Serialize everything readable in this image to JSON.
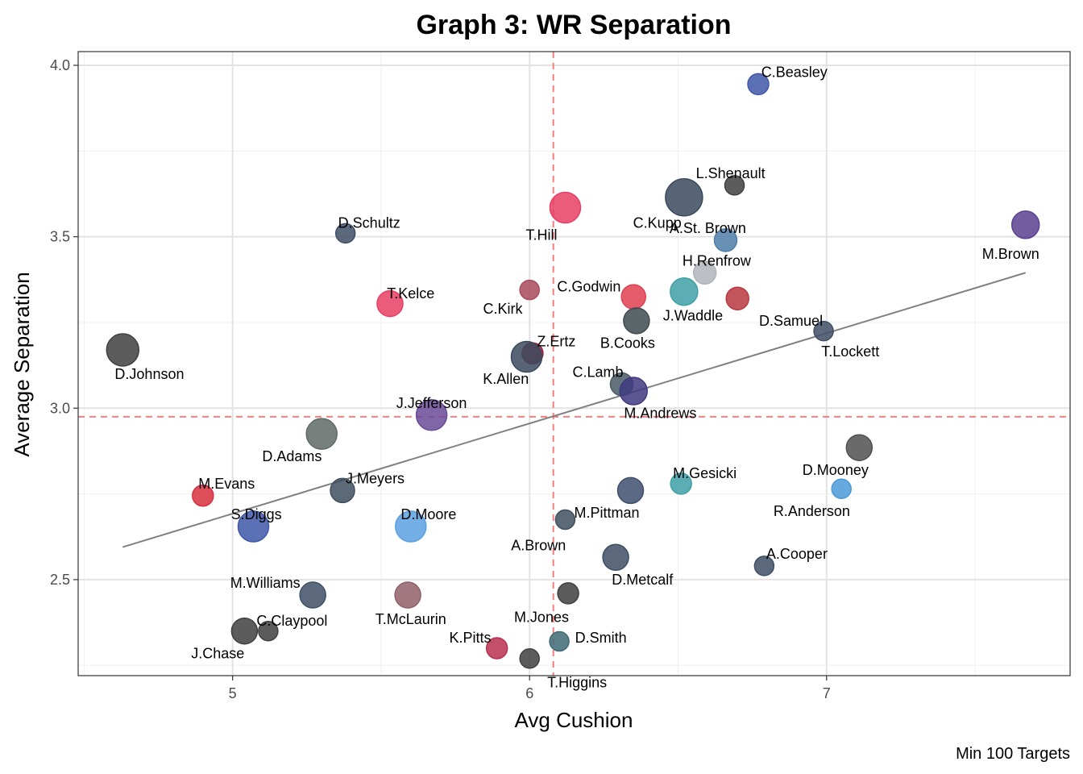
{
  "chart_data": {
    "type": "scatter",
    "title": "Graph 3: WR Separation",
    "xlabel": "Avg Cushion",
    "ylabel": "Average Separation",
    "caption": "Min 100 Targets",
    "xlim": [
      4.48,
      7.82
    ],
    "ylim": [
      2.22,
      4.04
    ],
    "x_ticks": [
      5,
      6,
      7
    ],
    "x_tick_labels": [
      "5",
      "6",
      "7"
    ],
    "y_ticks": [
      2.5,
      3.0,
      3.5,
      4.0
    ],
    "y_tick_labels": [
      "2.5",
      "3.0",
      "3.5",
      "4.0"
    ],
    "grid": true,
    "reference_lines": {
      "x": 6.08,
      "y": 2.975,
      "color": "#f08080",
      "style": "dashed"
    },
    "trend_line": {
      "x": [
        4.63,
        7.67
      ],
      "y": [
        2.595,
        3.395
      ],
      "color": "#808080"
    },
    "points": [
      {
        "label": "C.Beasley",
        "x": 6.77,
        "y": 3.945,
        "size": 13,
        "color": "#3f58a8",
        "lx": 6.78,
        "ly": 3.98,
        "anchor": "start"
      },
      {
        "label": "L.Shenault",
        "x": 6.69,
        "y": 3.65,
        "size": 12,
        "color": "#404040",
        "lx": 6.56,
        "ly": 3.685,
        "anchor": "start"
      },
      {
        "label": "C.Kupp",
        "x": 6.52,
        "y": 3.615,
        "size": 23,
        "color": "#3a4a5e",
        "lx": 6.43,
        "ly": 3.54,
        "anchor": "middle"
      },
      {
        "label": "T.Hill",
        "x": 6.12,
        "y": 3.585,
        "size": 19,
        "color": "#e84064",
        "lx": 6.04,
        "ly": 3.505,
        "anchor": "middle"
      },
      {
        "label": "M.Brown",
        "x": 7.67,
        "y": 3.535,
        "size": 17,
        "color": "#5a4190",
        "lx": 7.62,
        "ly": 3.45,
        "anchor": "middle"
      },
      {
        "label": "A.St. Brown",
        "x": 6.66,
        "y": 3.49,
        "size": 14,
        "color": "#4f7ea8",
        "lx": 6.6,
        "ly": 3.525,
        "anchor": "middle"
      },
      {
        "label": "D.Schultz",
        "x": 5.38,
        "y": 3.51,
        "size": 12,
        "color": "#3f4f66",
        "lx": 5.46,
        "ly": 3.54,
        "anchor": "middle"
      },
      {
        "label": "H.Renfrow",
        "x": 6.59,
        "y": 3.395,
        "size": 14,
        "color": "#b0b4b8",
        "lx": 6.63,
        "ly": 3.43,
        "anchor": "middle"
      },
      {
        "label": "C.Kirk",
        "x": 6.0,
        "y": 3.345,
        "size": 12,
        "color": "#a84a5a",
        "lx": 5.91,
        "ly": 3.29,
        "anchor": "middle"
      },
      {
        "label": "C.Godwin",
        "x": 6.35,
        "y": 3.325,
        "size": 15,
        "color": "#e04050",
        "lx": 6.2,
        "ly": 3.355,
        "anchor": "middle"
      },
      {
        "label": "J.Waddle",
        "x": 6.52,
        "y": 3.34,
        "size": 17,
        "color": "#40a0a8",
        "lx": 6.55,
        "ly": 3.27,
        "anchor": "middle"
      },
      {
        "label": "D.Samuel",
        "x": 6.7,
        "y": 3.32,
        "size": 14,
        "color": "#b83840",
        "lx": 6.88,
        "ly": 3.255,
        "anchor": "middle"
      },
      {
        "label": "T.Kelce",
        "x": 5.53,
        "y": 3.305,
        "size": 16,
        "color": "#e84064",
        "lx": 5.6,
        "ly": 3.335,
        "anchor": "middle"
      },
      {
        "label": "B.Cooks",
        "x": 6.36,
        "y": 3.255,
        "size": 16,
        "color": "#404a50",
        "lx": 6.33,
        "ly": 3.19,
        "anchor": "middle"
      },
      {
        "label": "T.Lockett",
        "x": 6.99,
        "y": 3.225,
        "size": 12,
        "color": "#3f4f66",
        "lx": 7.08,
        "ly": 3.165,
        "anchor": "middle"
      },
      {
        "label": "D.Johnson",
        "x": 4.63,
        "y": 3.17,
        "size": 20,
        "color": "#404040",
        "lx": 4.72,
        "ly": 3.1,
        "anchor": "middle"
      },
      {
        "label": "Z.Ertz",
        "x": 6.01,
        "y": 3.16,
        "size": 13,
        "color": "#a02040",
        "lx": 6.09,
        "ly": 3.195,
        "anchor": "middle"
      },
      {
        "label": "K.Allen",
        "x": 5.99,
        "y": 3.15,
        "size": 19,
        "color": "#3a4a5e",
        "lx": 5.92,
        "ly": 3.085,
        "anchor": "middle"
      },
      {
        "label": "C.Lamb",
        "x": 6.31,
        "y": 3.07,
        "size": 14,
        "color": "#4a5a66",
        "lx": 6.23,
        "ly": 3.105,
        "anchor": "middle"
      },
      {
        "label": "M.Andrews",
        "x": 6.35,
        "y": 3.05,
        "size": 17,
        "color": "#3f3a80",
        "lx": 6.44,
        "ly": 2.985,
        "anchor": "middle"
      },
      {
        "label": "J.Jefferson",
        "x": 5.67,
        "y": 2.98,
        "size": 19,
        "color": "#6a4a98",
        "lx": 5.67,
        "ly": 3.015,
        "anchor": "middle"
      },
      {
        "label": "D.Adams",
        "x": 5.3,
        "y": 2.925,
        "size": 19,
        "color": "#606a66",
        "lx": 5.2,
        "ly": 2.86,
        "anchor": "middle"
      },
      {
        "label": "D.Mooney",
        "x": 7.11,
        "y": 2.885,
        "size": 16,
        "color": "#505050",
        "lx": 7.03,
        "ly": 2.82,
        "anchor": "middle"
      },
      {
        "label": "M.Evans",
        "x": 4.9,
        "y": 2.745,
        "size": 13,
        "color": "#d83040",
        "lx": 4.98,
        "ly": 2.78,
        "anchor": "middle"
      },
      {
        "label": "J.Meyers",
        "x": 5.37,
        "y": 2.76,
        "size": 15,
        "color": "#3f4f5e",
        "lx": 5.48,
        "ly": 2.795,
        "anchor": "middle"
      },
      {
        "label": "M.Gesicki",
        "x": 6.51,
        "y": 2.78,
        "size": 13,
        "color": "#40a0a8",
        "lx": 6.59,
        "ly": 2.81,
        "anchor": "middle"
      },
      {
        "label": "R.Anderson",
        "x": 7.05,
        "y": 2.765,
        "size": 12,
        "color": "#4a9ad8",
        "lx": 6.95,
        "ly": 2.7,
        "anchor": "middle"
      },
      {
        "label": "M.Pittman",
        "x": 6.34,
        "y": 2.76,
        "size": 16,
        "color": "#3f4f6e",
        "lx": 6.26,
        "ly": 2.695,
        "anchor": "middle"
      },
      {
        "label": "S.Diggs",
        "x": 5.07,
        "y": 2.655,
        "size": 19,
        "color": "#3f58a8",
        "lx": 5.08,
        "ly": 2.69,
        "anchor": "middle"
      },
      {
        "label": "D.Moore",
        "x": 5.6,
        "y": 2.655,
        "size": 19,
        "color": "#5aa0e0",
        "lx": 5.66,
        "ly": 2.69,
        "anchor": "middle"
      },
      {
        "label": "A.Brown",
        "x": 6.12,
        "y": 2.675,
        "size": 12,
        "color": "#3f4f5e",
        "lx": 6.03,
        "ly": 2.6,
        "anchor": "middle"
      },
      {
        "label": "D.Metcalf",
        "x": 6.29,
        "y": 2.565,
        "size": 16,
        "color": "#3f4f66",
        "lx": 6.38,
        "ly": 2.5,
        "anchor": "middle"
      },
      {
        "label": "A.Cooper",
        "x": 6.79,
        "y": 2.54,
        "size": 12,
        "color": "#3f4f66",
        "lx": 6.9,
        "ly": 2.575,
        "anchor": "middle"
      },
      {
        "label": "M.Williams",
        "x": 5.27,
        "y": 2.455,
        "size": 16,
        "color": "#3f4f66",
        "lx": 5.11,
        "ly": 2.49,
        "anchor": "middle"
      },
      {
        "label": "T.McLaurin",
        "x": 5.59,
        "y": 2.455,
        "size": 16,
        "color": "#906068",
        "lx": 5.6,
        "ly": 2.385,
        "anchor": "middle"
      },
      {
        "label": "M.Jones",
        "x": 6.13,
        "y": 2.46,
        "size": 13,
        "color": "#404040",
        "lx": 6.04,
        "ly": 2.39,
        "anchor": "middle"
      },
      {
        "label": "C.Claypool",
        "x": 5.12,
        "y": 2.35,
        "size": 12,
        "color": "#404040",
        "lx": 5.2,
        "ly": 2.38,
        "anchor": "middle"
      },
      {
        "label": "J.Chase",
        "x": 5.04,
        "y": 2.35,
        "size": 16,
        "color": "#404040",
        "lx": 4.95,
        "ly": 2.285,
        "anchor": "middle"
      },
      {
        "label": "K.Pitts",
        "x": 5.89,
        "y": 2.3,
        "size": 13,
        "color": "#b83050",
        "lx": 5.8,
        "ly": 2.33,
        "anchor": "middle"
      },
      {
        "label": "D.Smith",
        "x": 6.1,
        "y": 2.32,
        "size": 12,
        "color": "#3f6a76",
        "lx": 6.24,
        "ly": 2.33,
        "anchor": "middle"
      },
      {
        "label": "T.Higgins",
        "x": 6.0,
        "y": 2.27,
        "size": 12,
        "color": "#404040",
        "lx": 6.16,
        "ly": 2.2,
        "anchor": "middle"
      }
    ]
  }
}
